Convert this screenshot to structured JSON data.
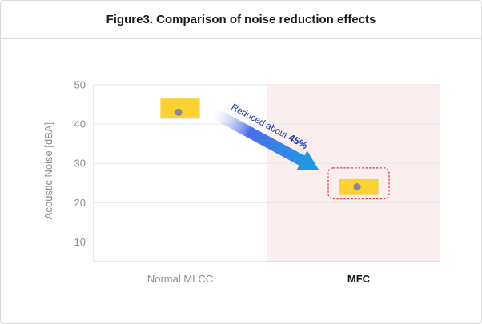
{
  "chart_data": {
    "type": "scatter",
    "title": "Figure3. Comparison of noise reduction effects",
    "ylabel": "Acoustic Noise [dBA]",
    "xlabel": "",
    "categories": [
      "Normal MLCC",
      "MFC"
    ],
    "y_ticks": [
      10,
      20,
      30,
      40,
      50
    ],
    "ylim": [
      5,
      50
    ],
    "grid": "horizontal",
    "points": [
      {
        "category": "Normal MLCC",
        "y": 43,
        "range": [
          41.5,
          46.5
        ]
      },
      {
        "category": "MFC",
        "y": 24,
        "range": [
          22,
          26
        ]
      }
    ],
    "highlight_category": "MFC",
    "annotation": {
      "text_prefix": "Reduced about ",
      "text_value": "45%"
    },
    "colors": {
      "marker_fill": "#fcd232",
      "marker_dot": "#8a8a8a",
      "highlight_band": "#fbeeef",
      "highlight_box": "#e8404a",
      "arrow_start": "#ffffff",
      "arrow_end": "#1a9fe0",
      "grid": "#e6e6e6"
    }
  }
}
